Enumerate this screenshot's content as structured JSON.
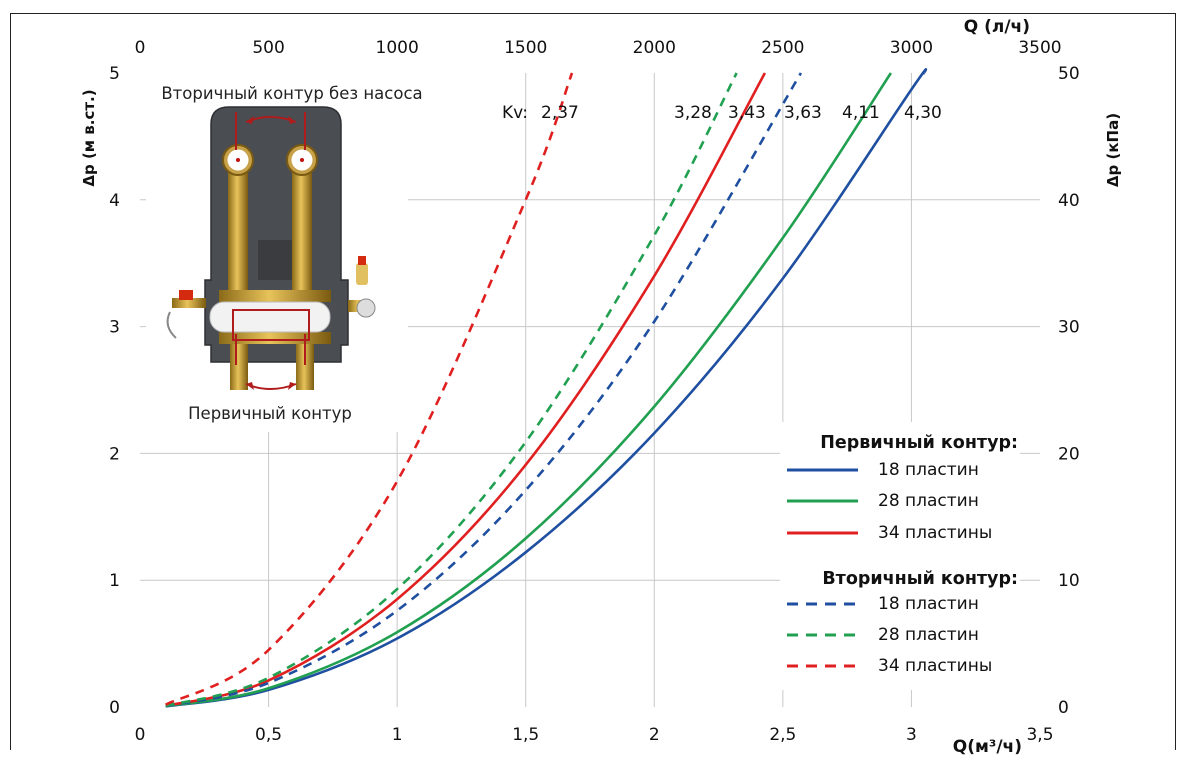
{
  "chart_data": {
    "type": "line",
    "x_bottom": {
      "label": "Q(м³/ч)",
      "lim": [
        0,
        3.5
      ],
      "ticks": [
        "0",
        "0,5",
        "1",
        "1,5",
        "2",
        "2,5",
        "3",
        "3,5"
      ]
    },
    "x_top": {
      "label": "Q (л/ч)",
      "lim": [
        0,
        3500
      ],
      "ticks": [
        "0",
        "500",
        "1000",
        "1500",
        "2000",
        "2500",
        "3000",
        "3500"
      ]
    },
    "y_left": {
      "label": "Δp (м в.ст.)",
      "lim": [
        0,
        5
      ],
      "ticks": [
        "0",
        "1",
        "2",
        "3",
        "4",
        "5"
      ]
    },
    "y_right": {
      "label": "Δp (кПа)",
      "lim": [
        0,
        50
      ],
      "ticks": [
        "0",
        "10",
        "20",
        "30",
        "40",
        "50"
      ]
    },
    "grid": true,
    "kv_prefix": "Kv:",
    "series": [
      {
        "name": "18 пластин",
        "group": "primary",
        "color": "#1f4fa0",
        "dash": false,
        "kv": "4,30",
        "x": [
          0.1,
          0.5,
          1.0,
          1.5,
          2.0,
          2.5,
          3.0,
          3.05
        ],
        "y": [
          0.005,
          0.135,
          0.54,
          1.22,
          2.16,
          3.38,
          4.87,
          5.0
        ]
      },
      {
        "name": "28 пластин",
        "group": "primary",
        "color": "#20a050",
        "dash": false,
        "kv": "4,11",
        "x": [
          0.1,
          0.5,
          1.0,
          1.5,
          2.0,
          2.5,
          2.92
        ],
        "y": [
          0.006,
          0.148,
          0.59,
          1.33,
          2.37,
          3.7,
          5.0
        ]
      },
      {
        "name": "34 пластины",
        "group": "primary",
        "color": "#e02020",
        "dash": false,
        "kv": "3,43",
        "x": [
          0.1,
          0.5,
          1.0,
          1.5,
          2.0,
          2.43
        ],
        "y": [
          0.008,
          0.21,
          0.85,
          1.91,
          3.4,
          5.0
        ]
      },
      {
        "name": "18 пластин",
        "group": "secondary",
        "color": "#1f4fa0",
        "dash": true,
        "kv": "3,63",
        "x": [
          0.1,
          0.5,
          1.0,
          1.5,
          2.0,
          2.57
        ],
        "y": [
          0.007,
          0.19,
          0.76,
          1.71,
          3.04,
          5.0
        ]
      },
      {
        "name": "28 пластин",
        "group": "secondary",
        "color": "#20a050",
        "dash": true,
        "kv": "3,28",
        "x": [
          0.1,
          0.5,
          1.0,
          1.5,
          2.0,
          2.32
        ],
        "y": [
          0.009,
          0.23,
          0.93,
          2.09,
          3.72,
          5.0
        ]
      },
      {
        "name": "34 пластины",
        "group": "secondary",
        "color": "#e02020",
        "dash": true,
        "kv": "2,37",
        "x": [
          0.1,
          0.5,
          1.0,
          1.5,
          1.68
        ],
        "y": [
          0.018,
          0.45,
          1.78,
          4.0,
          5.0
        ]
      }
    ],
    "legend": {
      "placement": "bottom-right",
      "primary_title": "Первичный контур:",
      "secondary_title": "Вторичный контур:"
    },
    "annotations": {
      "secondary_circuit": "Вторичный контур без насоса",
      "primary_circuit": "Первичный контур"
    }
  }
}
